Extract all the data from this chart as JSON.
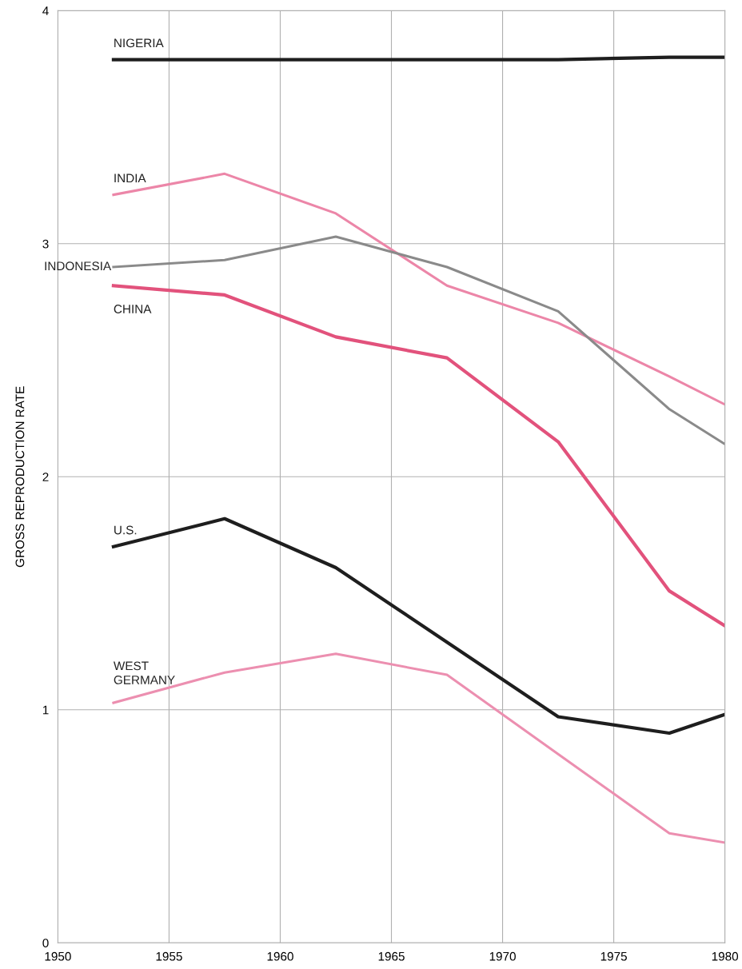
{
  "chart_data": {
    "type": "line",
    "ylabel": "GROSS REPRODUCTION RATE",
    "x": [
      1952.5,
      1957.5,
      1962.5,
      1967.5,
      1972.5,
      1977.5,
      1980
    ],
    "series": [
      {
        "name": "NIGERIA",
        "color": "#1e1e1e",
        "values": [
          3.79,
          3.79,
          3.79,
          3.79,
          3.79,
          3.8,
          3.8
        ]
      },
      {
        "name": "INDIA",
        "color": "#ec86a8",
        "values": [
          3.21,
          3.3,
          3.13,
          2.82,
          2.66,
          2.43,
          2.31
        ]
      },
      {
        "name": "INDONESIA",
        "color": "#8a8a8a",
        "values": [
          2.9,
          2.93,
          3.03,
          2.9,
          2.71,
          2.29,
          2.14
        ]
      },
      {
        "name": "CHINA",
        "color": "#e2527c",
        "values": [
          2.82,
          2.78,
          2.6,
          2.51,
          2.15,
          1.51,
          1.36
        ]
      },
      {
        "name": "U.S.",
        "color": "#1e1e1e",
        "values": [
          1.7,
          1.82,
          1.61,
          1.29,
          0.97,
          0.9,
          0.98
        ]
      },
      {
        "name": "WEST\nGERMANY",
        "color": "#ec8fb0",
        "values": [
          1.03,
          1.16,
          1.24,
          1.15,
          0.81,
          0.47,
          0.43
        ]
      }
    ],
    "xlim": [
      1950,
      1980
    ],
    "ylim": [
      0,
      4
    ],
    "xticks": [
      1950,
      1955,
      1960,
      1965,
      1970,
      1975,
      1980
    ],
    "yticks": [
      0,
      1,
      2,
      3,
      4
    ],
    "grid": true,
    "legend": false,
    "marker": "none",
    "line_style": "solid"
  }
}
